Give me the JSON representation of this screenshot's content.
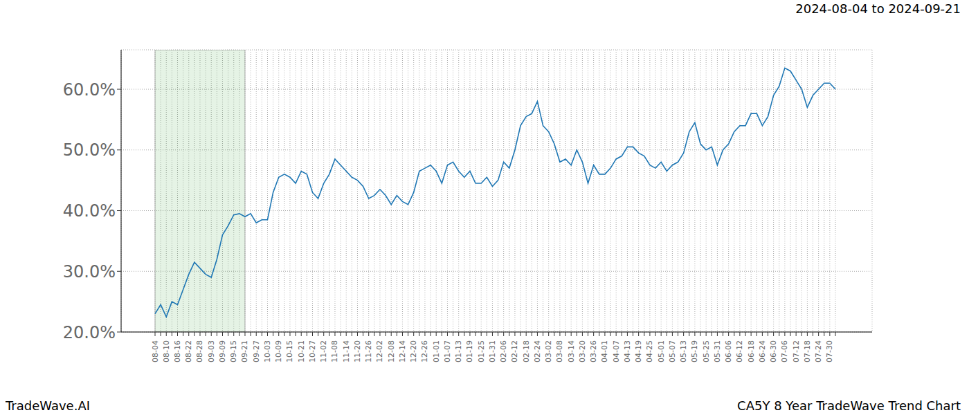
{
  "chart_data": {
    "type": "line",
    "title": "2024-08-04 to 2024-09-21",
    "subtitle": "CA5Y 8 Year TradeWave Trend Chart",
    "source": "TradeWave.AI",
    "categories": [
      "08-04",
      null,
      "08-10",
      null,
      "08-16",
      null,
      "08-22",
      null,
      "08-28",
      null,
      "09-03",
      null,
      "09-09",
      null,
      "09-15",
      null,
      "09-21",
      null,
      "09-27",
      null,
      "10-03",
      null,
      "10-09",
      null,
      "10-15",
      null,
      "10-21",
      null,
      "10-27",
      null,
      "11-02",
      null,
      "11-08",
      null,
      "11-14",
      null,
      "11-20",
      null,
      "11-26",
      null,
      "12-02",
      null,
      "12-08",
      null,
      "12-14",
      null,
      "12-20",
      null,
      "12-26",
      null,
      "01-01",
      null,
      "01-07",
      null,
      "01-13",
      null,
      "01-19",
      null,
      "01-25",
      null,
      "01-31",
      null,
      "02-06",
      null,
      "02-12",
      null,
      "02-18",
      null,
      "02-24",
      null,
      "03-02",
      null,
      "03-08",
      null,
      "03-14",
      null,
      "03-20",
      null,
      "03-26",
      null,
      "04-01",
      null,
      "04-07",
      null,
      "04-13",
      null,
      "04-19",
      null,
      "04-25",
      null,
      "05-01",
      null,
      "05-07",
      null,
      "05-13",
      null,
      "05-19",
      null,
      "05-25",
      null,
      "05-31",
      null,
      "06-06",
      null,
      "06-12",
      null,
      "06-18",
      null,
      "06-24",
      null,
      "06-30",
      null,
      "07-06",
      null,
      "07-12",
      null,
      "07-18",
      null,
      "07-24",
      null,
      "07-30",
      null
    ],
    "values": [
      23,
      24.5,
      22.5,
      25,
      24.5,
      27,
      29.5,
      31.5,
      30.5,
      29.5,
      29,
      32,
      36,
      37.5,
      39.3,
      39.5,
      39,
      39.5,
      38,
      38.5,
      38.5,
      43,
      45.5,
      46,
      45.5,
      44.5,
      46.5,
      46,
      43,
      42,
      44.5,
      46,
      48.5,
      47.5,
      46.5,
      45.5,
      45,
      44,
      42,
      42.5,
      43.5,
      42.5,
      41,
      42.5,
      41.5,
      41,
      43,
      46.5,
      47,
      47.5,
      46.5,
      44.5,
      47.5,
      48,
      46.5,
      45.5,
      46.5,
      44.5,
      44.5,
      45.5,
      44,
      45,
      48,
      47,
      50,
      54,
      55.5,
      56,
      58,
      54,
      53,
      51,
      48,
      48.5,
      47.5,
      50,
      48,
      44.5,
      47.5,
      46,
      46,
      47,
      48.5,
      49,
      50.5,
      50.5,
      49.5,
      49,
      47.5,
      47,
      48,
      46.5,
      47.5,
      48,
      49.5,
      53,
      54.5,
      51,
      50,
      50.5,
      47.5,
      50,
      51,
      53,
      54,
      54,
      56,
      56,
      54,
      55.5,
      59,
      60.5,
      63.5,
      63,
      61.5,
      60,
      57,
      59,
      60,
      61,
      61,
      60
    ],
    "color": "#1f77b4",
    "ylim": [
      20,
      66.5
    ],
    "yticks": [
      {
        "value": 20,
        "label": "20.0%"
      },
      {
        "value": 30,
        "label": "30.0%"
      },
      {
        "value": 40,
        "label": "40.0%"
      },
      {
        "value": 50,
        "label": "50.0%"
      },
      {
        "value": 60,
        "label": "60.0%"
      }
    ],
    "shaded_range": [
      "08-04",
      "09-21"
    ],
    "grid": true
  }
}
